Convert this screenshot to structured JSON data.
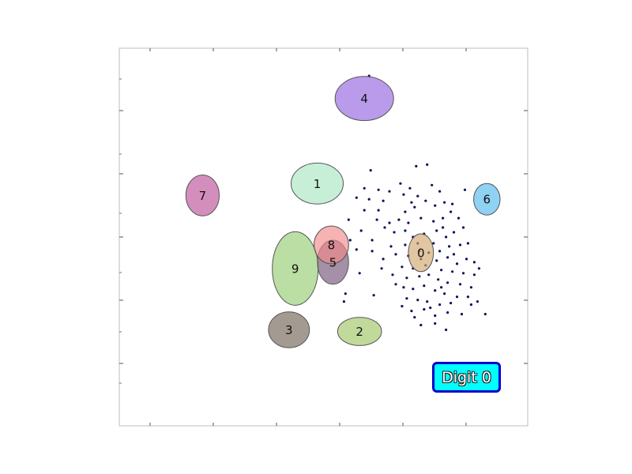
{
  "chart_data": {
    "type": "scatter",
    "title": "",
    "xlabel": "",
    "ylabel": "",
    "grid": false,
    "xlim": [
      0,
      13
    ],
    "ylim": [
      0,
      12
    ],
    "legend": {
      "text": "Digit 0",
      "placement": "bottom-right"
    },
    "clusters": [
      {
        "label": "0",
        "cx": 9.6,
        "cy": 5.5,
        "rx": 0.4,
        "ry": 0.6,
        "color": "#d2a86e"
      },
      {
        "label": "1",
        "cx": 6.3,
        "cy": 7.7,
        "rx": 0.83,
        "ry": 0.65,
        "color": "#a9e7c3"
      },
      {
        "label": "2",
        "cx": 7.65,
        "cy": 3.0,
        "rx": 0.7,
        "ry": 0.45,
        "color": "#9fc565"
      },
      {
        "label": "3",
        "cx": 5.4,
        "cy": 3.05,
        "rx": 0.65,
        "ry": 0.57,
        "color": "#726457"
      },
      {
        "label": "4",
        "cx": 7.8,
        "cy": 10.4,
        "rx": 0.93,
        "ry": 0.7,
        "color": "#9565e0"
      },
      {
        "label": "5",
        "cx": 6.8,
        "cy": 5.2,
        "rx": 0.5,
        "ry": 0.7,
        "color": "#735478"
      },
      {
        "label": "6",
        "cx": 11.7,
        "cy": 7.2,
        "rx": 0.42,
        "ry": 0.5,
        "color": "#53baed"
      },
      {
        "label": "7",
        "cx": 2.65,
        "cy": 7.32,
        "rx": 0.53,
        "ry": 0.65,
        "color": "#bd5199"
      },
      {
        "label": "8",
        "cx": 6.75,
        "cy": 5.75,
        "rx": 0.55,
        "ry": 0.6,
        "color": "#f28b8b"
      },
      {
        "label": "9",
        "cx": 5.6,
        "cy": 5.0,
        "rx": 0.73,
        "ry": 1.17,
        "color": "#95cc72"
      }
    ],
    "series": [
      {
        "color": "#10105a",
        "points": [
          [
            7.95,
            11.12
          ],
          [
            8.0,
            8.12
          ],
          [
            9.8,
            8.3
          ],
          [
            9.45,
            8.25
          ],
          [
            8.95,
            7.7
          ],
          [
            9.25,
            7.55
          ],
          [
            7.8,
            7.55
          ],
          [
            8.25,
            7.5
          ],
          [
            8.6,
            7.45
          ],
          [
            9.05,
            7.35
          ],
          [
            10.2,
            7.45
          ],
          [
            11.0,
            7.5
          ],
          [
            7.95,
            7.2
          ],
          [
            8.4,
            7.15
          ],
          [
            9.5,
            7.3
          ],
          [
            9.3,
            7.1
          ],
          [
            9.75,
            7.15
          ],
          [
            10.05,
            7.0
          ],
          [
            10.35,
            7.1
          ],
          [
            10.6,
            7.05
          ],
          [
            7.55,
            7.25
          ],
          [
            7.8,
            6.85
          ],
          [
            9.1,
            6.8
          ],
          [
            9.4,
            6.95
          ],
          [
            10.55,
            6.8
          ],
          [
            10.8,
            6.6
          ],
          [
            8.6,
            6.45
          ],
          [
            8.9,
            6.55
          ],
          [
            9.2,
            6.45
          ],
          [
            9.6,
            6.6
          ],
          [
            10.0,
            6.5
          ],
          [
            10.3,
            6.6
          ],
          [
            7.3,
            6.55
          ],
          [
            8.2,
            6.55
          ],
          [
            7.7,
            6.2
          ],
          [
            8.45,
            6.3
          ],
          [
            8.75,
            6.15
          ],
          [
            9.1,
            6.2
          ],
          [
            9.35,
            6.0
          ],
          [
            9.7,
            6.1
          ],
          [
            10.1,
            6.2
          ],
          [
            10.4,
            6.0
          ],
          [
            10.65,
            6.15
          ],
          [
            10.95,
            6.3
          ],
          [
            7.35,
            5.9
          ],
          [
            8.05,
            5.9
          ],
          [
            8.65,
            5.7
          ],
          [
            9.1,
            5.75
          ],
          [
            9.5,
            5.8
          ],
          [
            10.0,
            5.8
          ],
          [
            10.2,
            5.55
          ],
          [
            10.5,
            5.7
          ],
          [
            10.85,
            5.75
          ],
          [
            11.1,
            5.8
          ],
          [
            7.55,
            5.6
          ],
          [
            8.8,
            5.45
          ],
          [
            9.2,
            5.4
          ],
          [
            9.6,
            5.3
          ],
          [
            9.85,
            5.5
          ],
          [
            10.1,
            5.25
          ],
          [
            10.45,
            5.35
          ],
          [
            10.75,
            5.15
          ],
          [
            11.05,
            5.3
          ],
          [
            11.3,
            5.2
          ],
          [
            11.45,
            5.0
          ],
          [
            8.4,
            5.3
          ],
          [
            9.0,
            5.05
          ],
          [
            9.35,
            5.0
          ],
          [
            9.75,
            5.1
          ],
          [
            10.25,
            4.95
          ],
          [
            10.6,
            4.9
          ],
          [
            10.95,
            4.85
          ],
          [
            11.3,
            4.8
          ],
          [
            7.65,
            4.85
          ],
          [
            8.35,
            5.0
          ],
          [
            8.7,
            4.8
          ],
          [
            9.15,
            4.7
          ],
          [
            9.55,
            4.75
          ],
          [
            9.85,
            4.8
          ],
          [
            10.15,
            4.65
          ],
          [
            10.45,
            4.55
          ],
          [
            10.85,
            4.5
          ],
          [
            11.2,
            4.4
          ],
          [
            8.8,
            4.5
          ],
          [
            9.05,
            4.4
          ],
          [
            9.35,
            4.35
          ],
          [
            9.7,
            4.45
          ],
          [
            10.05,
            4.3
          ],
          [
            10.35,
            4.2
          ],
          [
            10.75,
            4.1
          ],
          [
            11.1,
            4.1
          ],
          [
            11.4,
            3.95
          ],
          [
            7.2,
            4.2
          ],
          [
            8.1,
            4.15
          ],
          [
            9.15,
            4.05
          ],
          [
            9.5,
            4.0
          ],
          [
            9.8,
            3.95
          ],
          [
            10.2,
            3.85
          ],
          [
            10.55,
            3.9
          ],
          [
            11.2,
            3.85
          ],
          [
            9.0,
            3.8
          ],
          [
            9.3,
            3.65
          ],
          [
            9.7,
            3.7
          ],
          [
            10.05,
            3.5
          ],
          [
            10.45,
            3.6
          ],
          [
            9.4,
            3.45
          ],
          [
            10.9,
            3.55
          ],
          [
            11.65,
            3.55
          ],
          [
            9.6,
            3.2
          ],
          [
            10.05,
            3.25
          ],
          [
            10.4,
            3.05
          ],
          [
            7.15,
            3.95
          ],
          [
            9.9,
            3.75
          ],
          [
            10.25,
            4.4
          ],
          [
            9.55,
            5.55
          ],
          [
            10.3,
            6.3
          ],
          [
            8.25,
            6.85
          ],
          [
            9.95,
            7.65
          ],
          [
            8.05,
            5.55
          ],
          [
            10.65,
            5.45
          ]
        ]
      }
    ]
  }
}
